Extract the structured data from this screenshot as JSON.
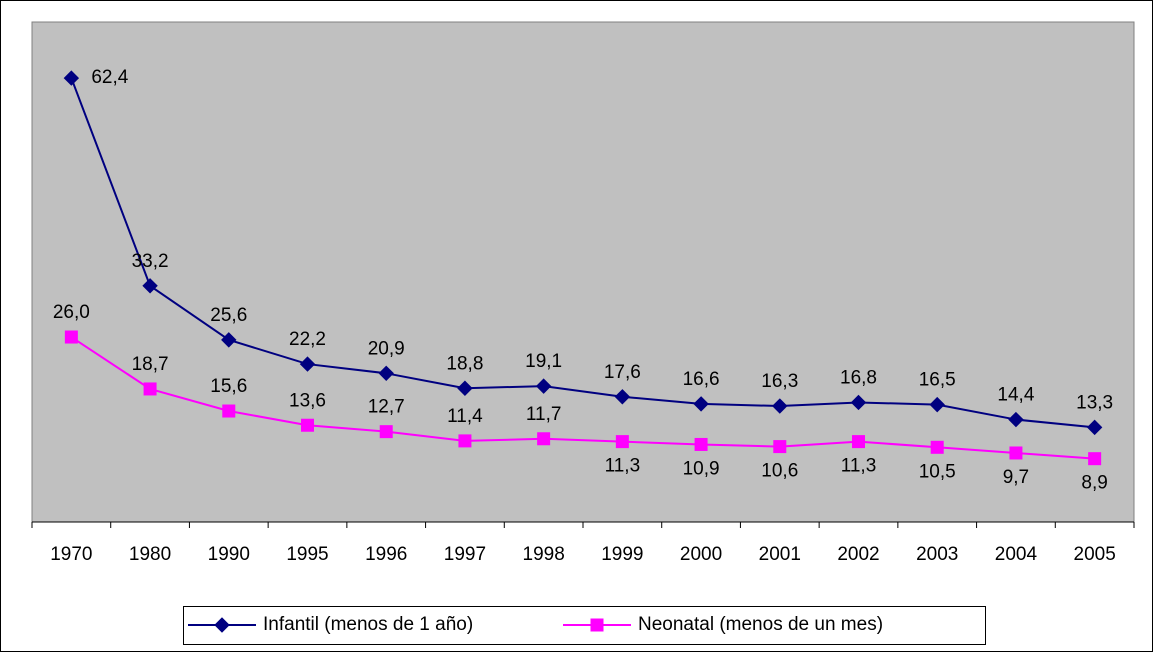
{
  "chart_data": {
    "type": "line",
    "categories": [
      "1970",
      "1980",
      "1990",
      "1995",
      "1996",
      "1997",
      "1998",
      "1999",
      "2000",
      "2001",
      "2002",
      "2003",
      "2004",
      "2005"
    ],
    "series": [
      {
        "name": "Infantil (menos de 1 año)",
        "color": "#000080",
        "values": [
          62.4,
          33.2,
          25.6,
          22.2,
          20.9,
          18.8,
          19.1,
          17.6,
          16.6,
          16.3,
          16.8,
          16.5,
          14.4,
          13.3
        ],
        "value_labels": [
          "62,4",
          "33,2",
          "25,6",
          "22,2",
          "20,9",
          "18,8",
          "19,1",
          "17,6",
          "16,6",
          "16,3",
          "16,8",
          "16,5",
          "14,4",
          "13,3"
        ]
      },
      {
        "name": "Neonatal (menos de un mes)",
        "color": "#ff00ff",
        "values": [
          26.0,
          18.7,
          15.6,
          13.6,
          12.7,
          11.4,
          11.7,
          11.3,
          10.9,
          10.6,
          11.3,
          10.5,
          9.7,
          8.9
        ],
        "value_labels": [
          "26,0",
          "18,7",
          "15,6",
          "13,6",
          "12,7",
          "11,4",
          "11,7",
          "11,3",
          "10,9",
          "10,6",
          "11,3",
          "10,5",
          "9,7",
          "8,9"
        ]
      }
    ],
    "ylim": [
      0,
      70
    ],
    "legend": "bottom"
  }
}
